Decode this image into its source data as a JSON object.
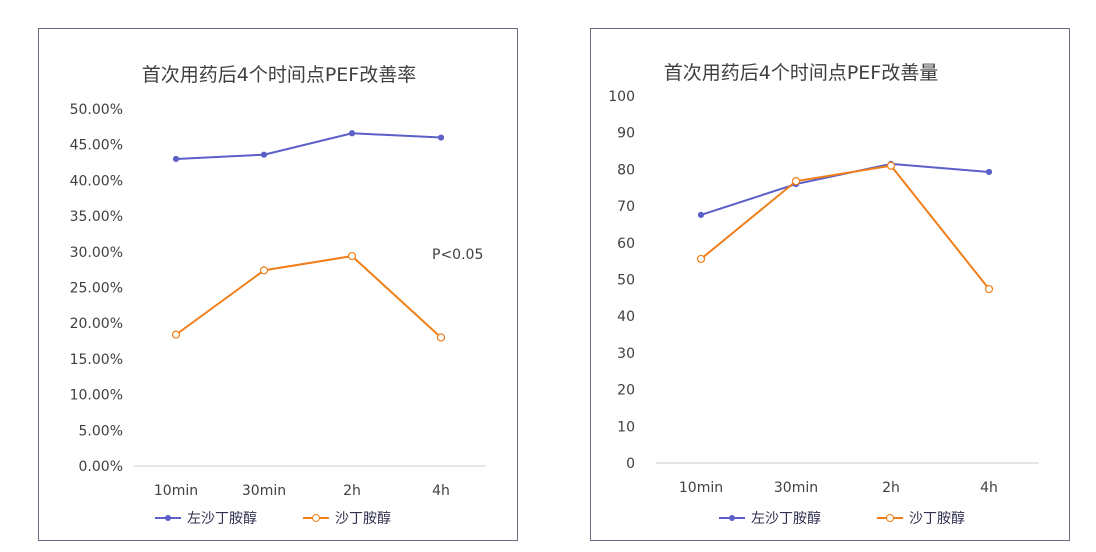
{
  "chart_data": [
    {
      "type": "line",
      "title": "首次用药后4个时间点PEF改善率",
      "categories": [
        "10min",
        "30min",
        "2h",
        "4h"
      ],
      "yticks": [
        "0.00%",
        "5.00%",
        "10.00%",
        "15.00%",
        "20.00%",
        "25.00%",
        "30.00%",
        "35.00%",
        "40.00%",
        "45.00%",
        "50.00%"
      ],
      "ylim": [
        0,
        50
      ],
      "unit": "%",
      "series": [
        {
          "name": "左沙丁胺醇",
          "values": [
            43.0,
            43.6,
            46.6,
            46.0
          ],
          "color": "#5b5fc7"
        },
        {
          "name": "沙丁胺醇",
          "values": [
            18.4,
            27.4,
            29.4,
            18.0
          ],
          "color": "#f07f1a"
        }
      ],
      "annotation": "P<0.05",
      "legend": "bottom",
      "grid": false
    },
    {
      "type": "line",
      "title": "首次用药后4个时间点PEF改善量",
      "categories": [
        "10min",
        "30min",
        "2h",
        "4h"
      ],
      "yticks": [
        "0",
        "10",
        "20",
        "30",
        "40",
        "50",
        "60",
        "70",
        "80",
        "90",
        "100"
      ],
      "ylim": [
        0,
        100
      ],
      "series": [
        {
          "name": "左沙丁胺醇",
          "values": [
            67.6,
            76,
            81.5,
            79.3
          ],
          "color": "#5b5fc7"
        },
        {
          "name": "沙丁胺醇",
          "values": [
            55.6,
            76.8,
            81,
            47.4
          ],
          "color": "#f07f1a"
        }
      ],
      "legend": "bottom",
      "grid": false
    }
  ]
}
